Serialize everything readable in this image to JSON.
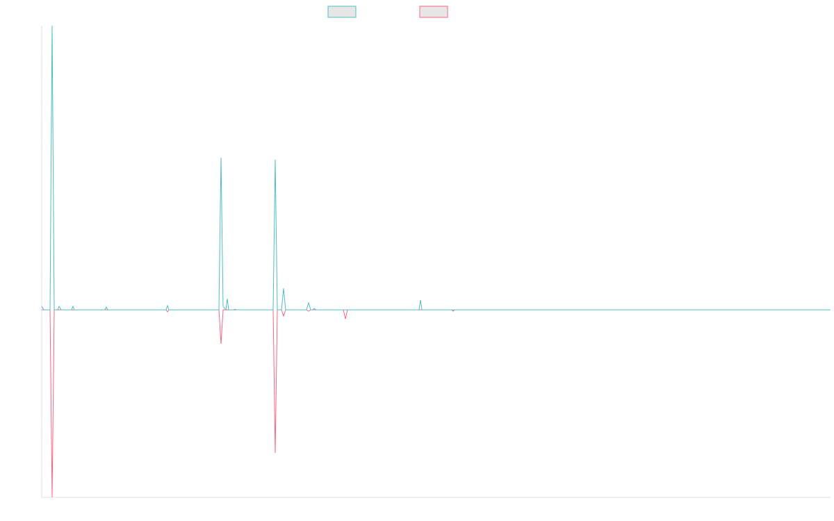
{
  "chart_data": {
    "type": "line",
    "xlim": [
      0,
      1135
    ],
    "ylim": [
      -270,
      409
    ],
    "series": [
      {
        "color": "#ff6384",
        "x": [
          0,
          12,
          15,
          18,
          179,
          181,
          183,
          255,
          258,
          261,
          333,
          336,
          339,
          345,
          348,
          351,
          381,
          384,
          387,
          434,
          437,
          440,
          590,
          592,
          594,
          1135
        ],
        "values": [
          0,
          0,
          -270,
          0,
          0,
          -3,
          0,
          0,
          -49,
          0,
          0,
          -206,
          0,
          0,
          -9,
          0,
          0,
          -2,
          0,
          0,
          -13,
          0,
          0,
          -2,
          0,
          0
        ]
      },
      {
        "color": "#4bc0c0",
        "x": [
          0,
          3,
          12,
          15,
          18,
          23,
          25,
          28,
          43,
          45,
          47,
          91,
          93,
          95,
          179,
          181,
          183,
          255,
          258,
          261,
          265,
          267,
          269,
          276,
          278,
          280,
          333,
          336,
          339,
          345,
          348,
          351,
          381,
          384,
          387,
          390,
          392,
          395,
          543,
          545,
          547,
          1135
        ],
        "values": [
          5,
          0,
          0,
          409,
          0,
          0,
          5,
          0,
          0,
          5,
          0,
          0,
          4,
          0,
          0,
          6,
          0,
          0,
          219,
          5,
          0,
          16,
          0,
          0,
          1,
          0,
          0,
          216,
          0,
          0,
          31,
          0,
          0,
          10,
          0,
          0,
          2,
          0,
          0,
          14,
          0,
          0
        ]
      }
    ]
  }
}
